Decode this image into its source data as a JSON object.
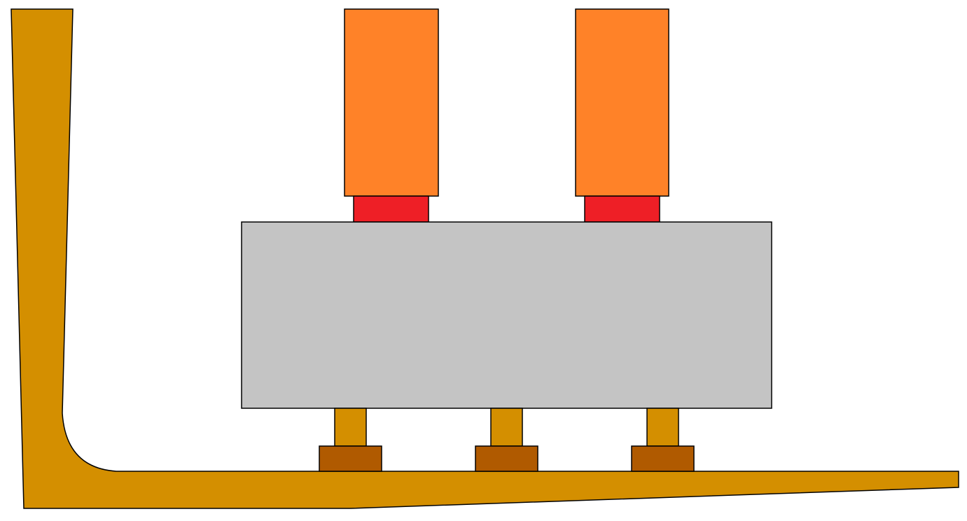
{
  "diagram": {
    "background": "#ffffff",
    "colors": {
      "forklift_body": "#d48f00",
      "pallet_block": "#c4c4c4",
      "load_column": "#ff8228",
      "load_base": "#ee1f26",
      "support_post": "#d48f00",
      "support_foot": "#b05a00",
      "outline": "#000000"
    },
    "components": {
      "columns": [
        "column-left",
        "column-right"
      ],
      "supports": [
        "support-left",
        "support-middle",
        "support-right"
      ]
    }
  }
}
